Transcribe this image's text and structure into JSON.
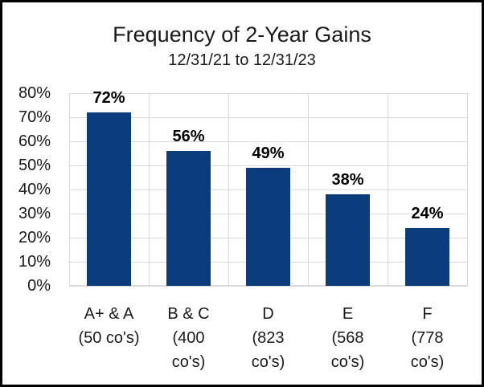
{
  "chart_data": {
    "type": "bar",
    "title": "Frequency of 2-Year Gains",
    "subtitle": "12/31/21 to 12/31/23",
    "categories": [
      "A+ & A (50 co's)",
      "B & C (400 co's)",
      "D (823 co's)",
      "E (568 co's)",
      "F (778 co's)"
    ],
    "category_label_lines": [
      [
        "A+ & A",
        "(50 co's)"
      ],
      [
        "B & C",
        "(400",
        "co's)"
      ],
      [
        "D",
        "(823",
        "co's)"
      ],
      [
        "E",
        "(568",
        "co's)"
      ],
      [
        "F",
        "(778",
        "co's)"
      ]
    ],
    "values": [
      72,
      56,
      49,
      38,
      24
    ],
    "data_labels": [
      "72%",
      "56%",
      "49%",
      "38%",
      "24%"
    ],
    "ytick_labels": [
      "0%",
      "10%",
      "20%",
      "30%",
      "40%",
      "50%",
      "60%",
      "70%",
      "80%"
    ],
    "ylim": [
      0,
      80
    ],
    "ytick_step": 10,
    "xlabel": "",
    "ylabel": "",
    "grid": true,
    "legend": false,
    "colors": {
      "bar": "#0b3c7c",
      "gridline": "#d9d9d9",
      "axis_line": "#d9d9d9",
      "text": "#1a1a1a",
      "data_label": "#000000",
      "frame_border": "#000000",
      "background": "#ffffff"
    }
  }
}
